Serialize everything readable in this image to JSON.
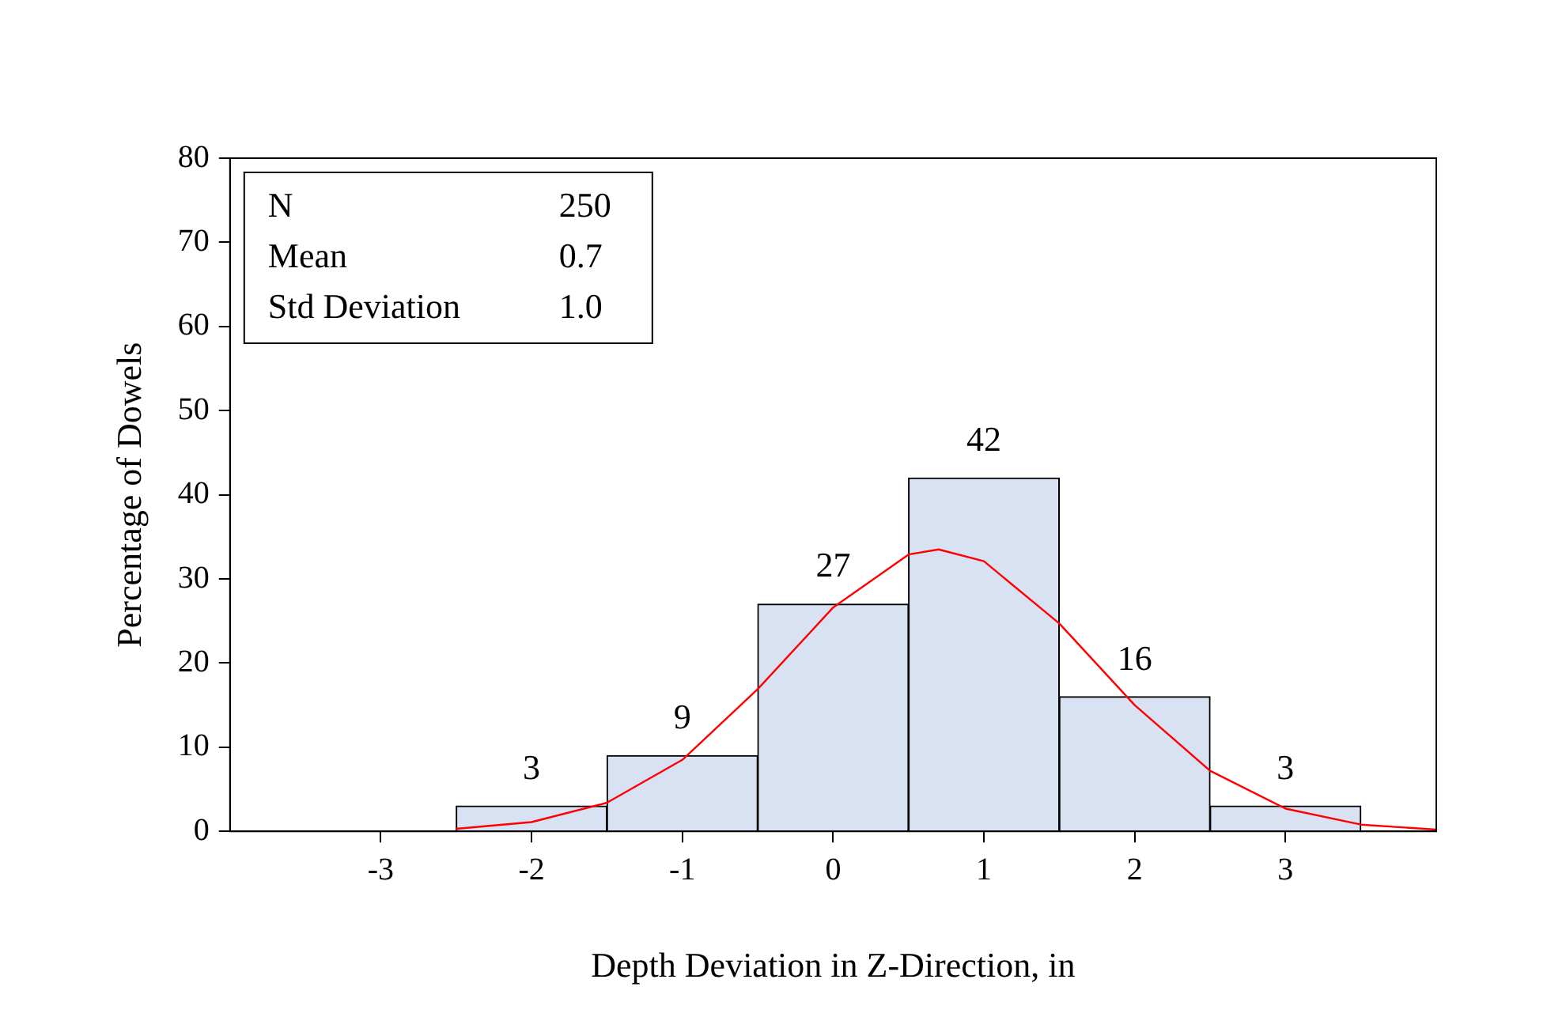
{
  "chart_data": {
    "type": "histogram",
    "xlabel": "Depth Deviation in Z-Direction, in",
    "ylabel": "Percentage of Dowels",
    "bins": [
      -2.5,
      -1.5,
      -0.5,
      0.5,
      1.5,
      2.5,
      3.5
    ],
    "values": [
      3,
      9,
      27,
      42,
      16,
      3
    ],
    "color": "#d9e2f3",
    "value_labels": [
      "3",
      "9",
      "27",
      "42",
      "16",
      "3"
    ],
    "series": [
      {
        "type": "line",
        "color": "#ff0000",
        "x": [
          -2.5,
          -2,
          -1.5,
          -1,
          -0.5,
          0,
          0.5,
          0.7,
          1,
          1.5,
          2,
          2.5,
          3,
          3.5,
          4
        ],
        "values": [
          0.3,
          1.1,
          3.4,
          8.5,
          16.9,
          26.6,
          32.9,
          33.5,
          32.1,
          24.7,
          15,
          7.2,
          2.7,
          0.8,
          0.2
        ]
      }
    ],
    "xlim": [
      -4,
      4
    ],
    "xticks": [
      -3,
      -2,
      -1,
      0,
      1,
      2,
      3
    ],
    "ylim": [
      0,
      80
    ],
    "yticks": [
      0,
      10,
      20,
      30,
      40,
      50,
      60,
      70,
      80
    ],
    "grid": false,
    "legend": false,
    "marker": "none",
    "line_style": "solid",
    "annotations": [
      "N",
      "250",
      "Mean",
      "0.7",
      "Std Deviation",
      "1.0"
    ]
  }
}
